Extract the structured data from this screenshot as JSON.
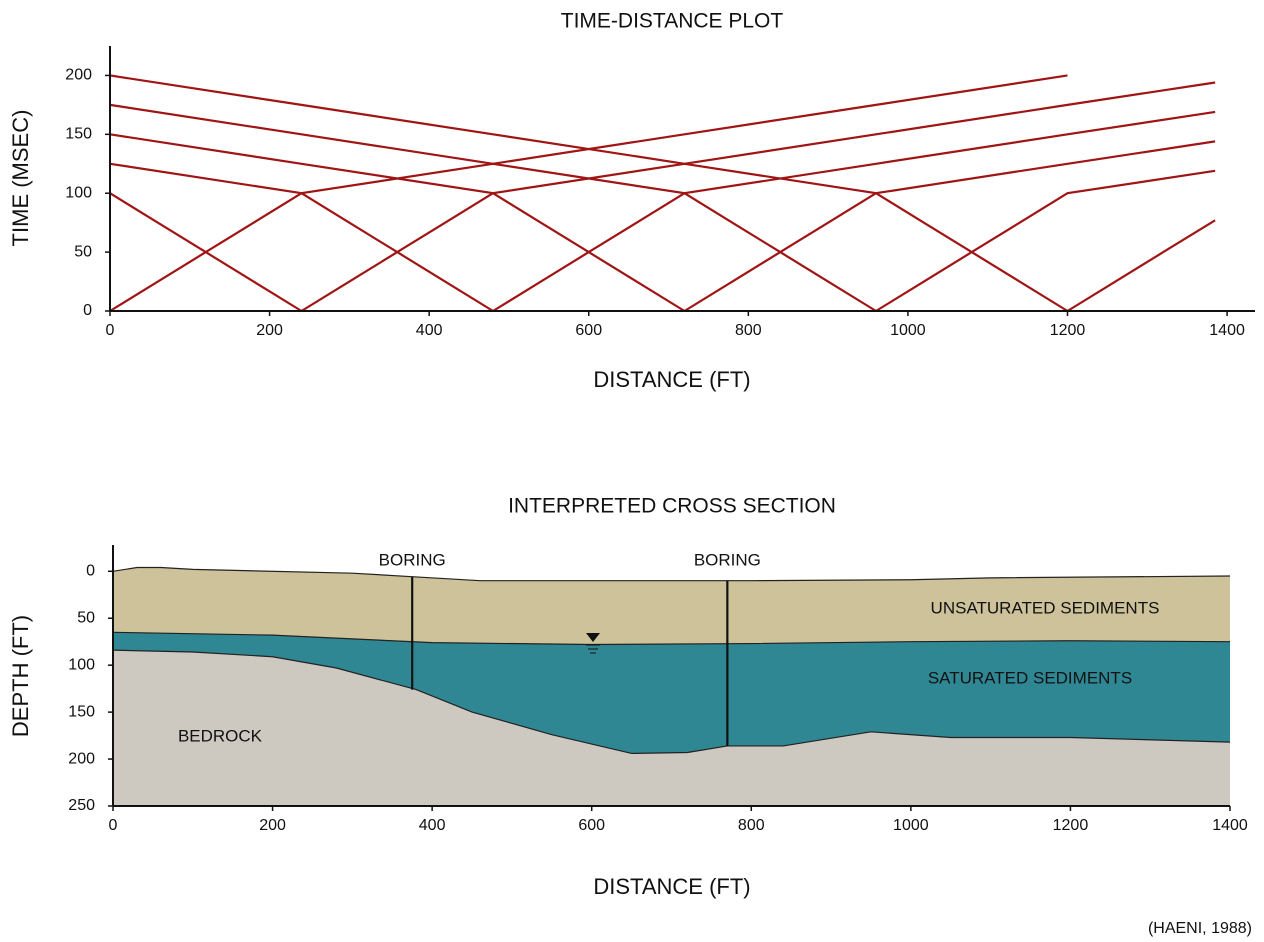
{
  "chart_data": [
    {
      "type": "line",
      "title": "TIME-DISTANCE PLOT",
      "x_label": "DISTANCE (FT)",
      "y_label": "TIME (MSEC)",
      "color": "#a01414",
      "xlim": [
        0,
        1435
      ],
      "ylim": [
        0,
        225
      ],
      "xticks": [
        0,
        200,
        400,
        600,
        800,
        1000,
        1200,
        1400
      ],
      "yticks": [
        0,
        50,
        100,
        150,
        200
      ],
      "series": [
        {
          "x": [
            0,
            60,
            120,
            180,
            240,
            480,
            720,
            960,
            1200
          ],
          "values": [
            0,
            25,
            50,
            75,
            100,
            125,
            150,
            175,
            200
          ]
        },
        {
          "x": [
            0,
            60,
            120,
            180,
            240
          ],
          "values": [
            100,
            75,
            50,
            25,
            0
          ]
        },
        {
          "x": [
            240,
            300,
            360,
            420,
            480,
            720,
            960,
            1200,
            1385
          ],
          "values": [
            0,
            25,
            50,
            75,
            100,
            125,
            150,
            175,
            194
          ]
        },
        {
          "x": [
            0,
            240,
            300,
            360,
            420,
            480
          ],
          "values": [
            125,
            100,
            75,
            50,
            25,
            0
          ]
        },
        {
          "x": [
            480,
            540,
            600,
            660,
            720,
            960,
            1200,
            1385
          ],
          "values": [
            0,
            25,
            50,
            75,
            100,
            125,
            150,
            169
          ]
        },
        {
          "x": [
            0,
            240,
            480,
            540,
            600,
            660,
            720
          ],
          "values": [
            150,
            125,
            100,
            75,
            50,
            25,
            0
          ]
        },
        {
          "x": [
            720,
            780,
            840,
            900,
            960,
            1200,
            1385
          ],
          "values": [
            0,
            25,
            50,
            75,
            100,
            125,
            144
          ]
        },
        {
          "x": [
            0,
            240,
            480,
            720,
            780,
            840,
            900,
            960
          ],
          "values": [
            175,
            150,
            125,
            100,
            75,
            50,
            25,
            0
          ]
        },
        {
          "x": [
            960,
            1020,
            1080,
            1140,
            1200,
            1385
          ],
          "values": [
            0,
            25,
            50,
            75,
            100,
            119
          ]
        },
        {
          "x": [
            0,
            240,
            480,
            720,
            960,
            1020,
            1080,
            1140,
            1200
          ],
          "values": [
            200,
            175,
            150,
            125,
            100,
            75,
            50,
            25,
            0
          ]
        },
        {
          "x": [
            1200,
            1260,
            1320,
            1385
          ],
          "values": [
            0,
            25,
            50,
            77
          ]
        }
      ]
    },
    {
      "type": "area",
      "title": "INTERPRETED CROSS SECTION",
      "x_label": "DISTANCE (FT)",
      "y_label": "DEPTH (FT)",
      "y_inverted": true,
      "xlim": [
        0,
        1400
      ],
      "ylim": [
        -28,
        250
      ],
      "xticks": [
        0,
        200,
        400,
        600,
        800,
        1000,
        1200,
        1400
      ],
      "yticks": [
        0,
        50,
        100,
        150,
        200,
        250
      ],
      "series": [
        {
          "name": "UNSATURATED SEDIMENTS",
          "color": "#cdc29a",
          "x": [
            0,
            30,
            60,
            100,
            300,
            380,
            460,
            800,
            1000,
            1100,
            1400
          ],
          "values": [
            0,
            -4,
            -4,
            -2,
            2,
            6,
            10,
            10,
            9,
            7,
            5
          ]
        },
        {
          "name": "SATURATED SEDIMENTS",
          "color": "#2f8794",
          "x": [
            0,
            200,
            300,
            400,
            600,
            800,
            1000,
            1200,
            1400
          ],
          "values": [
            65,
            68,
            72,
            76,
            78,
            77,
            75,
            74,
            75
          ]
        },
        {
          "name": "BEDROCK",
          "color": "#cdc8c0",
          "x": [
            0,
            100,
            200,
            280,
            380,
            450,
            550,
            650,
            720,
            770,
            840,
            950,
            1050,
            1200,
            1400
          ],
          "values": [
            84,
            86,
            91,
            103,
            126,
            150,
            174,
            194,
            193,
            186,
            186,
            171,
            177,
            177,
            182
          ]
        }
      ],
      "borings": [
        {
          "label": "BORING",
          "x": 375,
          "depth": 126
        },
        {
          "label": "BORING",
          "x": 770,
          "depth": 186
        }
      ],
      "source": "(HAENI, 1988)"
    }
  ]
}
